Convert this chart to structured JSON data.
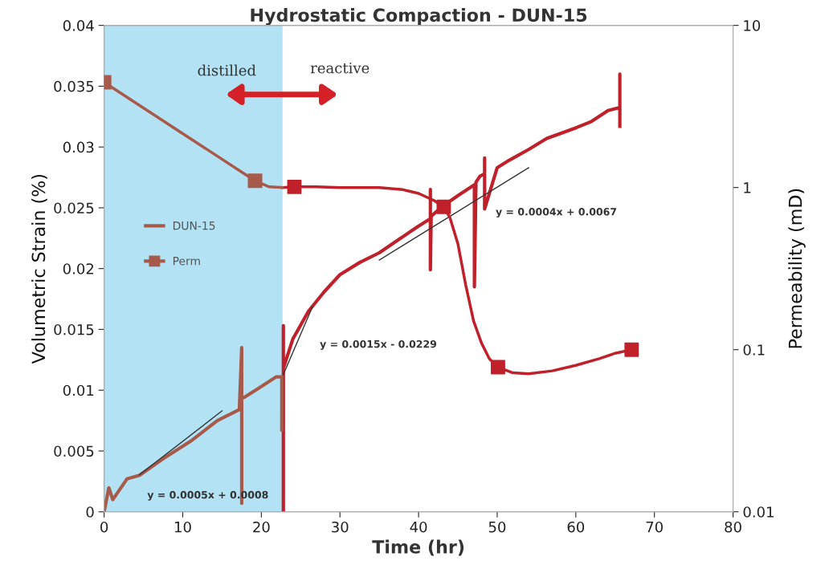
{
  "chart_data": {
    "type": "line",
    "title": "Hydrostatic Compaction - DUN-15",
    "xlabel": "Time (hr)",
    "ylabel": "Volumetric Strain (%)",
    "y2label": "Permeability (mD)",
    "xlim": [
      0,
      80
    ],
    "xticks": [
      0,
      10,
      20,
      30,
      40,
      50,
      60,
      70,
      80
    ],
    "ylim": [
      0,
      0.04
    ],
    "yticks": [
      0,
      0.005,
      0.01,
      0.015,
      0.02,
      0.025,
      0.03,
      0.035,
      0.04
    ],
    "y2lim": [
      0.01,
      10
    ],
    "y2ticks": [
      0.01,
      0.1,
      1,
      10
    ],
    "log": "y2",
    "grid": false,
    "legend": "center left",
    "bands": [
      {
        "axis": "x",
        "from": 0,
        "to": 22.7,
        "color": "#b3e2f4"
      }
    ],
    "series": [
      {
        "color": "#c0202a",
        "x": [
          22.8,
          22.8,
          22.8,
          22.8,
          24,
          26,
          28,
          30,
          32.5,
          35,
          37.5,
          40,
          41.5,
          41.5,
          41.5,
          41.6,
          43,
          45,
          47.1,
          47.1,
          47.3,
          47.8,
          48.4,
          48.4,
          48.4,
          50,
          51.5,
          54,
          56.3,
          58,
          60.1,
          62,
          64.1,
          65.3,
          65.6,
          65.6,
          65.6
        ],
        "values": [
          0.0118,
          0.0153,
          0,
          0.0118,
          0.0142,
          0.0165,
          0.0181,
          0.0195,
          0.0205,
          0.0213,
          0.0224,
          0.0235,
          0.0241,
          0.0265,
          0.0199,
          0.0243,
          0.0251,
          0.026,
          0.0269,
          0.0185,
          0.0271,
          0.0276,
          0.0278,
          0.0291,
          0.0249,
          0.0283,
          0.0289,
          0.0298,
          0.0307,
          0.0311,
          0.0316,
          0.0321,
          0.033,
          0.0332,
          0.0332,
          0.036,
          0.0317
        ]
      },
      {
        "name": "DUN-15",
        "color": "#a85a4a",
        "x": [
          0,
          0.6,
          1.1,
          2.9,
          4.5,
          7.6,
          11,
          14.4,
          17.2,
          17.5,
          17.5,
          17.5,
          17.8,
          19.5,
          21.9,
          22.6,
          22.6,
          22.6
        ],
        "values": [
          0,
          0.00198,
          0.001,
          0.0027,
          0.003,
          0.0044,
          0.0058,
          0.0075,
          0.0084,
          0.0135,
          0.0007,
          0.0094,
          0.0094,
          0.0101,
          0.0111,
          0.0111,
          0.0067,
          0.0111
        ]
      },
      {
        "color": "#333333",
        "x": [
          4.5,
          15
        ],
        "values": [
          0.00305,
          0.0083
        ]
      },
      {
        "color": "#333333",
        "x": [
          22.8,
          26.5
        ],
        "values": [
          0.0113,
          0.01685
        ]
      },
      {
        "color": "#333333",
        "x": [
          35,
          54
        ],
        "values": [
          0.0207,
          0.0283
        ]
      },
      {
        "color": "#c0202a",
        "axis": "y2",
        "x": [
          22.7,
          24.2,
          27,
          30,
          35,
          38,
          40,
          42,
          43.2,
          44,
          45,
          46,
          47,
          48,
          49,
          50.1,
          52,
          54,
          57,
          60,
          63,
          65,
          67.1
        ],
        "values": [
          1.0,
          1.01,
          1.01,
          1.0,
          1.0,
          0.97,
          0.92,
          0.83,
          0.76,
          0.65,
          0.45,
          0.25,
          0.15,
          0.11,
          0.088,
          0.078,
          0.072,
          0.071,
          0.074,
          0.08,
          0.088,
          0.095,
          0.1
        ]
      },
      {
        "color": "#a85a4a",
        "axis": "y2",
        "x": [
          19.2,
          21,
          22.7
        ],
        "values": [
          1.1,
          1.01,
          1.0
        ]
      },
      {
        "type": "scatter",
        "color": "#c0202a",
        "axis": "y2",
        "marker": "square",
        "x": [
          24.2,
          43.2,
          50.1,
          67.1
        ],
        "values": [
          1.01,
          0.76,
          0.078,
          0.1
        ]
      },
      {
        "name": "Perm",
        "color": "#a85a4a",
        "axis": "y2",
        "marker": "square",
        "x": [
          0,
          19.2
        ],
        "values": [
          4.46,
          1.1
        ]
      }
    ],
    "annotations": [
      "distilled",
      "reactive",
      "y = 0.0005x + 0.0008",
      "y = 0.0015x - 0.0229",
      "y = 0.0004x + 0.0067"
    ]
  }
}
